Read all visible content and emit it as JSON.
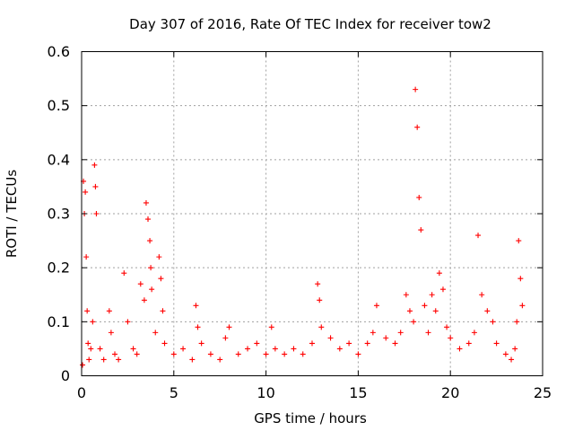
{
  "chart_data": {
    "type": "scatter",
    "title": "Day 307 of 2016, Rate Of TEC Index for receiver tow2",
    "xlabel": "GPS time / hours",
    "ylabel": "ROTI / TECUs",
    "xlim": [
      0,
      25
    ],
    "ylim": [
      0,
      0.6
    ],
    "xticks": [
      0,
      5,
      10,
      15,
      20,
      25
    ],
    "xtick_labels": [
      "0",
      "5",
      "10",
      "15",
      "20",
      "25"
    ],
    "yticks": [
      0,
      0.1,
      0.2,
      0.3,
      0.4,
      0.5,
      0.6
    ],
    "ytick_labels": [
      "0",
      "0.1",
      "0.2",
      "0.3",
      "0.4",
      "0.5",
      "0.6"
    ],
    "grid": true,
    "marker": "plus",
    "color": "#ff0000",
    "series": [
      {
        "name": "ROTI",
        "x": [
          0.05,
          0.1,
          0.15,
          0.2,
          0.25,
          0.3,
          0.35,
          0.4,
          0.5,
          0.6,
          0.7,
          0.75,
          0.8,
          1.0,
          1.2,
          1.5,
          1.6,
          1.8,
          2.0,
          2.3,
          2.5,
          2.8,
          3.0,
          3.2,
          3.4,
          3.5,
          3.6,
          3.7,
          3.75,
          3.8,
          4.0,
          4.2,
          4.3,
          4.4,
          4.5,
          5.0,
          5.5,
          6.0,
          6.2,
          6.3,
          6.5,
          7.0,
          7.5,
          7.8,
          8.0,
          8.5,
          9.0,
          9.5,
          10.0,
          10.3,
          10.5,
          11.0,
          11.5,
          12.0,
          12.5,
          12.8,
          12.9,
          13.0,
          13.5,
          14.0,
          14.5,
          15.0,
          15.5,
          15.8,
          16.0,
          16.5,
          17.0,
          17.3,
          17.6,
          17.8,
          18.0,
          18.1,
          18.2,
          18.3,
          18.4,
          18.6,
          18.8,
          19.0,
          19.2,
          19.4,
          19.6,
          19.8,
          20.0,
          20.5,
          21.0,
          21.3,
          21.5,
          21.7,
          22.0,
          22.3,
          22.5,
          23.0,
          23.3,
          23.5,
          23.6,
          23.7,
          23.8,
          23.9
        ],
        "y": [
          0.02,
          0.36,
          0.3,
          0.34,
          0.22,
          0.12,
          0.06,
          0.03,
          0.05,
          0.1,
          0.39,
          0.35,
          0.3,
          0.05,
          0.03,
          0.12,
          0.08,
          0.04,
          0.03,
          0.19,
          0.1,
          0.05,
          0.04,
          0.17,
          0.14,
          0.32,
          0.29,
          0.25,
          0.2,
          0.16,
          0.08,
          0.22,
          0.18,
          0.12,
          0.06,
          0.04,
          0.05,
          0.03,
          0.13,
          0.09,
          0.06,
          0.04,
          0.03,
          0.07,
          0.09,
          0.04,
          0.05,
          0.06,
          0.04,
          0.09,
          0.05,
          0.04,
          0.05,
          0.04,
          0.06,
          0.17,
          0.14,
          0.09,
          0.07,
          0.05,
          0.06,
          0.04,
          0.06,
          0.08,
          0.13,
          0.07,
          0.06,
          0.08,
          0.15,
          0.12,
          0.1,
          0.53,
          0.46,
          0.33,
          0.27,
          0.13,
          0.08,
          0.15,
          0.12,
          0.19,
          0.16,
          0.09,
          0.07,
          0.05,
          0.06,
          0.08,
          0.26,
          0.15,
          0.12,
          0.1,
          0.06,
          0.04,
          0.03,
          0.05,
          0.1,
          0.25,
          0.18,
          0.13
        ]
      }
    ]
  }
}
